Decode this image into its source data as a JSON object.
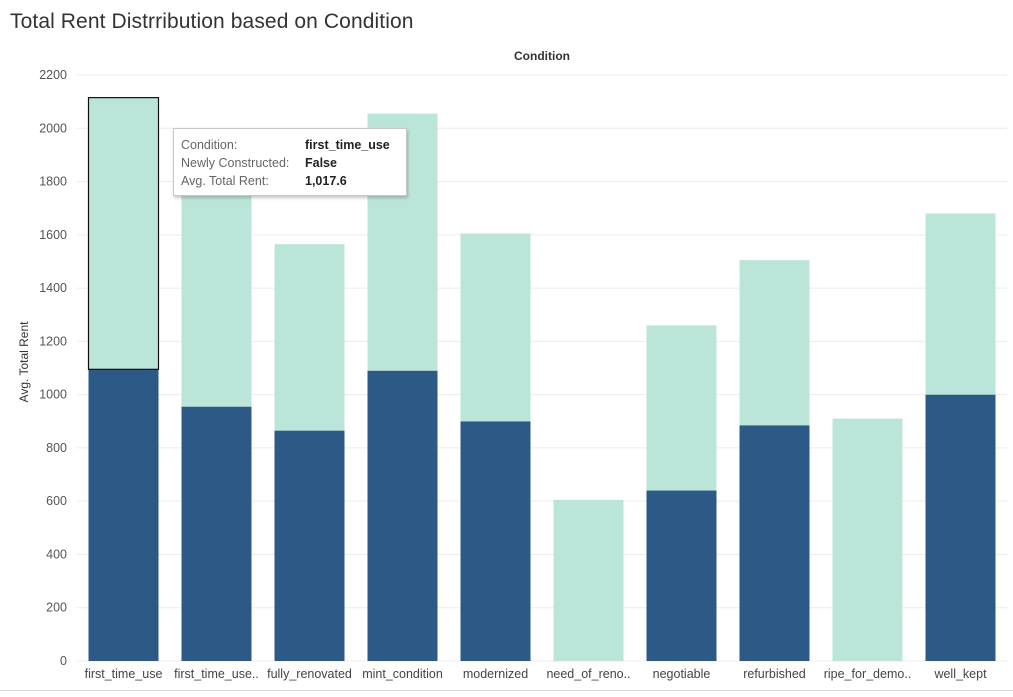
{
  "chart_data": {
    "type": "bar",
    "stacked": true,
    "title": "Total Rent Distrribution based on Condition",
    "header": "Condition",
    "ylabel": "Avg. Total Rent",
    "ylim": [
      0,
      2200
    ],
    "yticks": [
      0,
      200,
      400,
      600,
      800,
      1000,
      1200,
      1400,
      1600,
      1800,
      2000,
      2200
    ],
    "grid": true,
    "categories": [
      "first_time_use",
      "first_time_use..",
      "fully_renovated",
      "mint_condition",
      "modernized",
      "need_of_reno..",
      "negotiable",
      "refurbished",
      "ripe_for_demo..",
      "well_kept"
    ],
    "series": [
      {
        "color": "#2d5986",
        "values": [
          1095,
          955,
          865,
          1090,
          900,
          0,
          640,
          885,
          0,
          1000
        ]
      },
      {
        "color": "#bce5da",
        "values": [
          1020,
          985,
          700,
          965,
          705,
          605,
          620,
          620,
          910,
          680
        ]
      }
    ],
    "highlight": {
      "category_index": 0,
      "series_index": 1
    }
  },
  "tooltip": {
    "rows": [
      {
        "key": "Condition:",
        "value": "first_time_use"
      },
      {
        "key": "Newly Constructed:",
        "value": "False"
      },
      {
        "key": "Avg. Total Rent:",
        "value": "1,017.6"
      }
    ]
  }
}
